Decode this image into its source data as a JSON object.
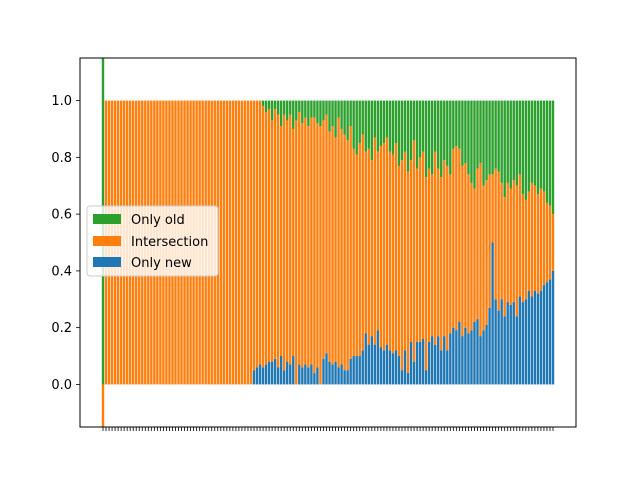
{
  "chart_data": {
    "type": "bar",
    "stacked": true,
    "n_bars": 150,
    "ylim": [
      -0.15,
      1.15
    ],
    "yticks": [
      "0.0",
      "0.2",
      "0.4",
      "0.6",
      "0.8",
      "1.0"
    ],
    "xticks_labeled": false,
    "legend": {
      "placement": "center-left",
      "entries": [
        "Only old",
        "Intersection",
        "Only new"
      ]
    },
    "colors": {
      "only_old": "#2ca02c",
      "intersection": "#ff7f0e",
      "only_new": "#1f77b4"
    },
    "series": [
      {
        "name": "Only new",
        "description_of_values": "fraction of bar from 0",
        "values": [
          -0.03,
          0,
          0,
          0,
          0,
          0,
          0,
          0,
          0,
          0,
          0,
          0,
          0,
          0,
          0,
          0,
          0,
          0,
          0,
          0,
          0,
          0,
          0,
          0,
          0,
          0,
          0,
          0,
          0,
          0,
          0,
          0,
          0,
          0,
          0,
          0,
          0,
          0,
          0,
          0,
          0,
          0,
          0,
          0,
          0,
          0,
          0,
          0,
          0,
          0,
          0.05,
          0.06,
          0.07,
          0.06,
          0.07,
          0.08,
          0.08,
          0.09,
          0.06,
          0.1,
          0.05,
          0.08,
          0.07,
          0.1,
          0,
          0.07,
          0.06,
          0.07,
          0.06,
          0.07,
          0.04,
          0.06,
          0,
          0.09,
          0.11,
          0.08,
          0.07,
          0.08,
          0.06,
          0.07,
          0.05,
          0.05,
          0.09,
          0.1,
          0.1,
          0.1,
          0.12,
          0.18,
          0.14,
          0.17,
          0.14,
          0.19,
          0.13,
          0.12,
          0.14,
          0.12,
          0.11,
          0.12,
          0.1,
          0.05,
          0.12,
          0.04,
          0.15,
          0.08,
          0.15,
          0.15,
          0.16,
          0.05,
          0.15,
          0.17,
          0.14,
          0.17,
          0.12,
          0.17,
          0.12,
          0.18,
          0.2,
          0.19,
          0.22,
          0.17,
          0.2,
          0.18,
          0.19,
          0.22,
          0.23,
          0.17,
          0.19,
          0.21,
          0.27,
          0.5,
          0.3,
          0.26,
          0.3,
          0.24,
          0.29,
          0.28,
          0.29,
          0.24,
          0.31,
          0.29,
          0.3,
          0.33,
          0.31,
          0.33,
          0.32,
          0.33,
          0.35,
          0.36,
          0.37,
          0.4
        ]
      },
      {
        "name": "Only old",
        "description_of_values": "fraction of bar ending at 1.0",
        "values": [
          -0.15,
          0,
          0,
          0,
          0,
          0,
          0,
          0,
          0,
          0,
          0,
          0,
          0,
          0,
          0,
          0,
          0,
          0,
          0,
          0,
          0,
          0,
          0,
          0,
          0,
          0,
          0,
          0,
          0,
          0,
          0,
          0,
          0,
          0,
          0,
          0,
          0,
          0,
          0,
          0,
          0,
          0,
          0,
          0,
          0,
          0,
          0,
          0,
          0,
          0,
          0,
          0,
          0,
          0.02,
          0.04,
          0.03,
          0.07,
          0.03,
          0.05,
          0.09,
          0.05,
          0.07,
          0.05,
          0.1,
          0.07,
          0.04,
          0.08,
          0.06,
          0.09,
          0.06,
          0.06,
          0.08,
          0.09,
          0.07,
          0.05,
          0.11,
          0.09,
          0.13,
          0.06,
          0.1,
          0.12,
          0.14,
          0.09,
          0.17,
          0.19,
          0.15,
          0.12,
          0.18,
          0.17,
          0.21,
          0.13,
          0.18,
          0.16,
          0.15,
          0.13,
          0.18,
          0.19,
          0.15,
          0.23,
          0.21,
          0.18,
          0.25,
          0.21,
          0.14,
          0.24,
          0.2,
          0.18,
          0.27,
          0.24,
          0.26,
          0.18,
          0.24,
          0.27,
          0.21,
          0.23,
          0.26,
          0.17,
          0.16,
          0.17,
          0.23,
          0.22,
          0.26,
          0.29,
          0.31,
          0.24,
          0.22,
          0.3,
          0.28,
          0.26,
          0.26,
          0.24,
          0.25,
          0.29,
          0.34,
          0.29,
          0.31,
          0.28,
          0.3,
          0.26,
          0.33,
          0.35,
          0.32,
          0.29,
          0.3,
          0.33,
          0.31,
          0.32,
          0.36,
          0.37,
          0.4
        ]
      }
    ]
  }
}
